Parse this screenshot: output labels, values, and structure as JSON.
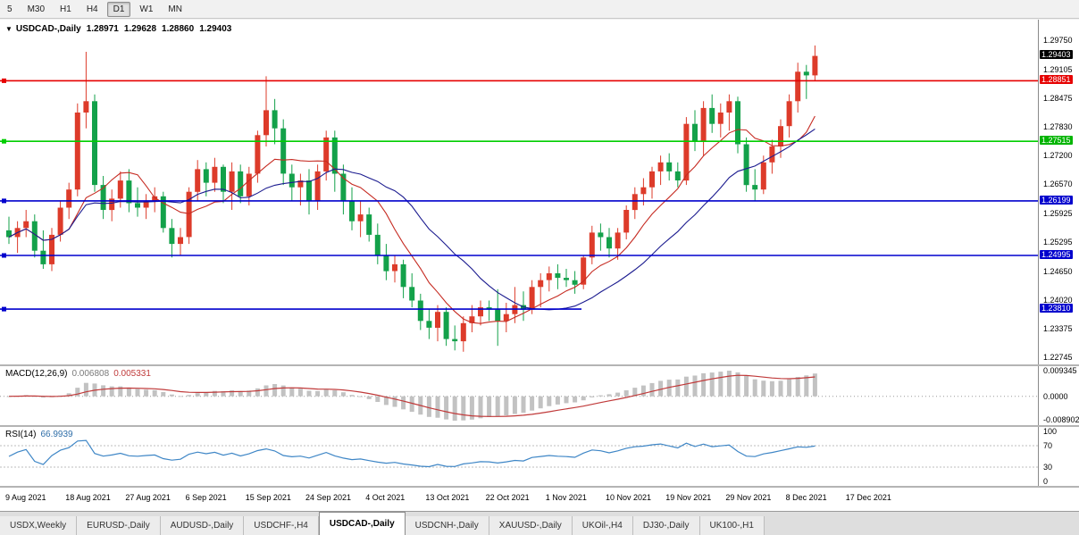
{
  "toolbar": {
    "periods": [
      "5",
      "M30",
      "H1",
      "H4",
      "D1",
      "W1",
      "MN"
    ],
    "active_period": "D1"
  },
  "chart_data": {
    "type": "candlestick",
    "marker": "▼",
    "symbol_label": "USDCAD-,Daily",
    "ohlc": {
      "open": "1.28971",
      "high": "1.29628",
      "low": "1.28860",
      "close": "1.29403"
    },
    "colors": {
      "up": "#dd3b2a",
      "down": "#13a14a",
      "ma_fast": "#c62b22",
      "ma_slow": "#1b1b8f"
    },
    "ma_periods": {
      "fast": 8,
      "slow": 18
    },
    "price_range": {
      "max": 1.302,
      "min": 1.2259
    },
    "levels": [
      {
        "price": 1.28851,
        "color": "#e60000",
        "frac": 1
      },
      {
        "price": 1.27515,
        "color": "#00ce00",
        "frac": 1
      },
      {
        "price": 1.26199,
        "color": "#0000cd",
        "frac": 1
      },
      {
        "price": 1.24995,
        "color": "#0000cd",
        "frac": 1
      },
      {
        "price": 1.2381,
        "color": "#0000cd",
        "frac": 0.56
      }
    ],
    "candles": [
      [
        "08-09",
        1.2555,
        1.2585,
        1.2525,
        1.254
      ],
      [
        "08-10",
        1.254,
        1.2575,
        1.2505,
        1.256
      ],
      [
        "08-11",
        1.256,
        1.26,
        1.254,
        1.2575
      ],
      [
        "08-12",
        1.2575,
        1.259,
        1.2495,
        1.251
      ],
      [
        "08-13",
        1.251,
        1.2555,
        1.247,
        1.248
      ],
      [
        "08-16",
        1.248,
        1.256,
        1.2465,
        1.2545
      ],
      [
        "08-17",
        1.2545,
        1.262,
        1.253,
        1.2605
      ],
      [
        "08-18",
        1.2605,
        1.266,
        1.258,
        1.2645
      ],
      [
        "08-19",
        1.2645,
        1.2835,
        1.263,
        1.2815
      ],
      [
        "08-20",
        1.2815,
        1.2949,
        1.278,
        1.284
      ],
      [
        "08-23",
        1.284,
        1.2855,
        1.264,
        1.2655
      ],
      [
        "08-24",
        1.2655,
        1.2675,
        1.258,
        1.26
      ],
      [
        "08-25",
        1.26,
        1.2645,
        1.2575,
        1.2625
      ],
      [
        "08-26",
        1.2625,
        1.2685,
        1.2605,
        1.2665
      ],
      [
        "08-27",
        1.2665,
        1.269,
        1.2595,
        1.2615
      ],
      [
        "08-30",
        1.2615,
        1.265,
        1.2585,
        1.2605
      ],
      [
        "08-31",
        1.2605,
        1.2635,
        1.258,
        1.262
      ],
      [
        "09-01",
        1.262,
        1.265,
        1.2595,
        1.263
      ],
      [
        "09-02",
        1.263,
        1.264,
        1.255,
        1.256
      ],
      [
        "09-03",
        1.256,
        1.258,
        1.2495,
        1.2525
      ],
      [
        "09-06",
        1.2525,
        1.256,
        1.25,
        1.254
      ],
      [
        "09-07",
        1.254,
        1.265,
        1.2525,
        1.264
      ],
      [
        "09-08",
        1.264,
        1.271,
        1.262,
        1.269
      ],
      [
        "09-09",
        1.269,
        1.2705,
        1.263,
        1.266
      ],
      [
        "09-10",
        1.266,
        1.2715,
        1.264,
        1.2695
      ],
      [
        "09-13",
        1.2695,
        1.27,
        1.2615,
        1.264
      ],
      [
        "09-14",
        1.264,
        1.2705,
        1.26,
        1.2685
      ],
      [
        "09-15",
        1.2685,
        1.27,
        1.2615,
        1.263
      ],
      [
        "09-16",
        1.263,
        1.2695,
        1.261,
        1.268
      ],
      [
        "09-17",
        1.268,
        1.2775,
        1.266,
        1.2765
      ],
      [
        "09-20",
        1.2765,
        1.2895,
        1.274,
        1.282
      ],
      [
        "09-21",
        1.282,
        1.2845,
        1.2745,
        1.278
      ],
      [
        "09-22",
        1.278,
        1.28,
        1.2655,
        1.268
      ],
      [
        "09-23",
        1.268,
        1.27,
        1.262,
        1.265
      ],
      [
        "09-24",
        1.265,
        1.268,
        1.261,
        1.2665
      ],
      [
        "09-27",
        1.2665,
        1.269,
        1.259,
        1.262
      ],
      [
        "09-28",
        1.262,
        1.27,
        1.26,
        1.2685
      ],
      [
        "09-29",
        1.2685,
        1.2775,
        1.2665,
        1.276
      ],
      [
        "09-30",
        1.276,
        1.2775,
        1.264,
        1.268
      ],
      [
        "10-01",
        1.268,
        1.27,
        1.259,
        1.262
      ],
      [
        "10-04",
        1.262,
        1.265,
        1.2555,
        1.2575
      ],
      [
        "10-05",
        1.2575,
        1.262,
        1.254,
        1.259
      ],
      [
        "10-06",
        1.259,
        1.2605,
        1.253,
        1.2545
      ],
      [
        "10-07",
        1.2545,
        1.257,
        1.248,
        1.25
      ],
      [
        "10-08",
        1.25,
        1.2525,
        1.2445,
        1.2465
      ],
      [
        "10-11",
        1.2465,
        1.25,
        1.244,
        1.248
      ],
      [
        "10-12",
        1.248,
        1.249,
        1.2405,
        1.243
      ],
      [
        "10-13",
        1.243,
        1.246,
        1.2385,
        1.24
      ],
      [
        "10-14",
        1.24,
        1.2415,
        1.2335,
        1.2355
      ],
      [
        "10-15",
        1.2355,
        1.238,
        1.2315,
        1.234
      ],
      [
        "10-18",
        1.234,
        1.239,
        1.231,
        1.2375
      ],
      [
        "10-19",
        1.2375,
        1.2385,
        1.23,
        1.2315
      ],
      [
        "10-20",
        1.2315,
        1.2345,
        1.229,
        1.231
      ],
      [
        "10-21",
        1.231,
        1.2365,
        1.2287,
        1.235
      ],
      [
        "10-22",
        1.235,
        1.239,
        1.233,
        1.2365
      ],
      [
        "10-25",
        1.2365,
        1.24,
        1.2345,
        1.2385
      ],
      [
        "10-26",
        1.2385,
        1.24,
        1.2355,
        1.238
      ],
      [
        "10-27",
        1.238,
        1.2425,
        1.23,
        1.2355
      ],
      [
        "10-28",
        1.2355,
        1.2395,
        1.233,
        1.237
      ],
      [
        "10-29",
        1.237,
        1.243,
        1.235,
        1.239
      ],
      [
        "11-01",
        1.239,
        1.242,
        1.2355,
        1.238
      ],
      [
        "11-02",
        1.238,
        1.2445,
        1.237,
        1.243
      ],
      [
        "11-03",
        1.243,
        1.246,
        1.2385,
        1.2445
      ],
      [
        "11-04",
        1.2445,
        1.2475,
        1.242,
        1.246
      ],
      [
        "11-05",
        1.246,
        1.248,
        1.2425,
        1.245
      ],
      [
        "11-08",
        1.245,
        1.247,
        1.243,
        1.2445
      ],
      [
        "11-09",
        1.2445,
        1.2465,
        1.2415,
        1.2435
      ],
      [
        "11-10",
        1.2435,
        1.25,
        1.2425,
        1.2495
      ],
      [
        "11-11",
        1.2495,
        1.2565,
        1.248,
        1.255
      ],
      [
        "11-12",
        1.255,
        1.257,
        1.251,
        1.254
      ],
      [
        "11-15",
        1.254,
        1.256,
        1.2495,
        1.2515
      ],
      [
        "11-16",
        1.2515,
        1.256,
        1.249,
        1.255
      ],
      [
        "11-17",
        1.255,
        1.261,
        1.2535,
        1.26
      ],
      [
        "11-18",
        1.26,
        1.265,
        1.258,
        1.2635
      ],
      [
        "11-19",
        1.2635,
        1.267,
        1.261,
        1.265
      ],
      [
        "11-22",
        1.265,
        1.2695,
        1.2625,
        1.2685
      ],
      [
        "11-23",
        1.2685,
        1.272,
        1.2655,
        1.2705
      ],
      [
        "11-24",
        1.2705,
        1.2725,
        1.2665,
        1.2685
      ],
      [
        "11-25",
        1.2685,
        1.2705,
        1.265,
        1.2665
      ],
      [
        "11-26",
        1.2665,
        1.2805,
        1.2655,
        1.279
      ],
      [
        "11-29",
        1.279,
        1.282,
        1.273,
        1.275
      ],
      [
        "11-30",
        1.275,
        1.284,
        1.272,
        1.2825
      ],
      [
        "12-01",
        1.2825,
        1.2855,
        1.277,
        1.279
      ],
      [
        "12-02",
        1.279,
        1.2835,
        1.276,
        1.2815
      ],
      [
        "12-03",
        1.2815,
        1.2855,
        1.2775,
        1.284
      ],
      [
        "12-06",
        1.284,
        1.285,
        1.2725,
        1.2745
      ],
      [
        "12-07",
        1.2745,
        1.276,
        1.264,
        1.2655
      ],
      [
        "12-08",
        1.2655,
        1.269,
        1.262,
        1.2645
      ],
      [
        "12-09",
        1.2645,
        1.272,
        1.2635,
        1.2705
      ],
      [
        "12-10",
        1.2705,
        1.2755,
        1.268,
        1.274
      ],
      [
        "12-13",
        1.274,
        1.28,
        1.2715,
        1.2785
      ],
      [
        "12-14",
        1.2785,
        1.2855,
        1.276,
        1.284
      ],
      [
        "12-15",
        1.284,
        1.2925,
        1.2815,
        1.2905
      ],
      [
        "12-16",
        1.2905,
        1.292,
        1.2845,
        1.2897
      ],
      [
        "12-17",
        1.2897,
        1.2963,
        1.2886,
        1.294
      ]
    ]
  },
  "price_axis": {
    "ticks": [
      "1.29750",
      "1.29105",
      "1.28475",
      "1.27830",
      "1.27200",
      "1.26570",
      "1.25925",
      "1.25295",
      "1.24650",
      "1.24020",
      "1.23375",
      "1.22745"
    ],
    "specials": [
      {
        "text": "1.29403",
        "bg": "#000000",
        "role": "current-price"
      },
      {
        "text": "1.28851",
        "bg": "#e60000",
        "role": "level"
      },
      {
        "text": "1.27515",
        "bg": "#00b400",
        "role": "level"
      },
      {
        "text": "1.26199",
        "bg": "#0000cd",
        "role": "level"
      },
      {
        "text": "1.24995",
        "bg": "#0000cd",
        "role": "level"
      },
      {
        "text": "1.23810",
        "bg": "#0000cd",
        "role": "level"
      }
    ]
  },
  "macd": {
    "label": "MACD(12,26,9)",
    "value_main": "0.006808",
    "value_signal": "0.005331",
    "axis_labels": [
      "0.009345",
      "0.0000",
      "-0.008902"
    ],
    "histogram_color": "#c2c2c2",
    "signal_color": "#c03a3a"
  },
  "rsi": {
    "label": "RSI(14)",
    "value": "66.9939",
    "axis_labels": [
      "100",
      "70",
      "30",
      "0"
    ],
    "levels": [
      70,
      30
    ],
    "line_color": "#3e86c6"
  },
  "time_axis": {
    "labels": [
      "9 Aug 2021",
      "18 Aug 2021",
      "27 Aug 2021",
      "6 Sep 2021",
      "15 Sep 2021",
      "24 Sep 2021",
      "4 Oct 2021",
      "13 Oct 2021",
      "22 Oct 2021",
      "1 Nov 2021",
      "10 Nov 2021",
      "19 Nov 2021",
      "29 Nov 2021",
      "8 Dec 2021",
      "17 Dec 2021"
    ]
  },
  "tabs": {
    "items": [
      "USDX,Weekly",
      "EURUSD-,Daily",
      "AUDUSD-,Daily",
      "USDCHF-,H4",
      "USDCAD-,Daily",
      "USDCNH-,Daily",
      "XAUUSD-,Daily",
      "UKOil-,H4",
      "DJ30-,Daily",
      "UK100-,H1"
    ],
    "active_index": 4
  }
}
